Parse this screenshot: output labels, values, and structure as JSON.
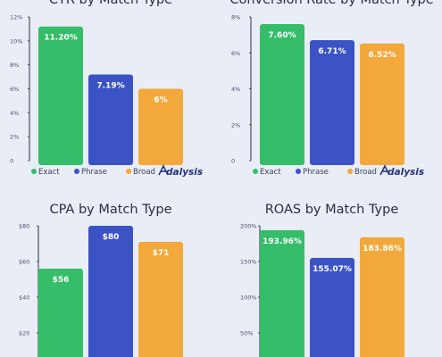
{
  "colors": {
    "background": "#e9edf5",
    "exact": "#35bd69",
    "phrase": "#3b53c4",
    "broad": "#f2a83a",
    "axis": "#2a2f45",
    "brand": "#26327a"
  },
  "legend": [
    "Exact",
    "Phrase",
    "Broad"
  ],
  "brand": {
    "name": "Adalysis",
    "icon": "adalysis-logo-icon"
  },
  "chart_data": [
    {
      "type": "bar",
      "title": "CTR by Match Type",
      "categories": [
        "Exact",
        "Phrase",
        "Broad"
      ],
      "values": [
        11.2,
        7.19,
        6
      ],
      "data_labels": [
        "11.20%",
        "7.19%",
        "6%"
      ],
      "ylim": [
        0,
        12
      ],
      "yticks": [
        0,
        2,
        4,
        6,
        8,
        10,
        12
      ],
      "ytick_labels": [
        "0",
        "2%",
        "4%",
        "6%",
        "8%",
        "10%",
        "12%"
      ],
      "xlabel": "",
      "ylabel": "",
      "legend": "bottom-left",
      "grid": false
    },
    {
      "type": "bar",
      "title": "Conversion Rate by Match Type",
      "categories": [
        "Exact",
        "Phrase",
        "Broad"
      ],
      "values": [
        7.6,
        6.71,
        6.52
      ],
      "data_labels": [
        "7.60%",
        "6.71%",
        "6.52%"
      ],
      "ylim": [
        0,
        8
      ],
      "yticks": [
        0,
        2,
        4,
        6,
        8
      ],
      "ytick_labels": [
        "0",
        "2%",
        "4%",
        "6%",
        "8%"
      ],
      "xlabel": "",
      "ylabel": "",
      "legend": "bottom-left",
      "grid": false
    },
    {
      "type": "bar",
      "title": "CPA by Match Type",
      "categories": [
        "Exact",
        "Phrase",
        "Broad"
      ],
      "values": [
        56,
        80,
        71
      ],
      "data_labels": [
        "$56",
        "$80",
        "$71"
      ],
      "ylim": [
        0,
        80
      ],
      "yticks": [
        20,
        40,
        60,
        80
      ],
      "ytick_labels": [
        "$20",
        "$40",
        "$60",
        "$80"
      ],
      "xlabel": "",
      "ylabel": "",
      "legend": "none",
      "grid": false
    },
    {
      "type": "bar",
      "title": "ROAS by Match Type",
      "categories": [
        "Exact",
        "Phrase",
        "Broad"
      ],
      "values": [
        193.96,
        155.07,
        183.86
      ],
      "data_labels": [
        "193.96%",
        "155.07%",
        "183.86%"
      ],
      "ylim": [
        0,
        200
      ],
      "yticks": [
        50,
        100,
        150,
        200
      ],
      "ytick_labels": [
        "50%",
        "100%",
        "150%",
        "200%"
      ],
      "xlabel": "",
      "ylabel": "",
      "legend": "none",
      "grid": false
    }
  ]
}
